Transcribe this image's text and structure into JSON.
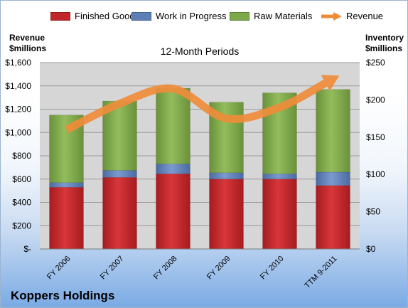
{
  "legend": {
    "finished": "Finished Goods",
    "wip": "Work in Progress",
    "raw": "Raw Materials",
    "revenue": "Revenue"
  },
  "axis": {
    "left_title_line1": "Revenue",
    "left_title_line2": "$millions",
    "right_title_line1": "Inventory",
    "right_title_line2": "$millions"
  },
  "company": "Koppers Holdings",
  "chart_data": {
    "type": "bar",
    "title": "12-Month Periods",
    "categories": [
      "FY 2006",
      "FY 2007",
      "FY 2008",
      "FY 2009",
      "FY 2010",
      "TTM 9-2011"
    ],
    "series": [
      {
        "name": "Finished Goods",
        "axis": "left",
        "values": [
          530,
          615,
          645,
          600,
          600,
          545
        ],
        "color": "#c0262a"
      },
      {
        "name": "Work in Progress",
        "axis": "left",
        "values": [
          40,
          60,
          85,
          55,
          45,
          115
        ],
        "color": "#5c7fb8"
      },
      {
        "name": "Raw Materials",
        "axis": "left",
        "values": [
          580,
          595,
          650,
          605,
          695,
          710
        ],
        "color": "#7ea84a"
      },
      {
        "name": "Revenue",
        "axis": "right",
        "type": "line",
        "values": [
          160,
          195,
          215,
          175,
          190,
          228
        ],
        "color": "#ef8c3a"
      }
    ],
    "y_left": {
      "range": [
        0,
        1600
      ],
      "ticks": [
        "$-",
        "$200",
        "$400",
        "$600",
        "$800",
        "$1,000",
        "$1,200",
        "$1,400",
        "$1,600"
      ]
    },
    "y_right": {
      "range": [
        0,
        250
      ],
      "ticks": [
        "$0",
        "$50",
        "$100",
        "$150",
        "$200",
        "$250"
      ]
    },
    "grid": true,
    "legend_position": "top"
  }
}
